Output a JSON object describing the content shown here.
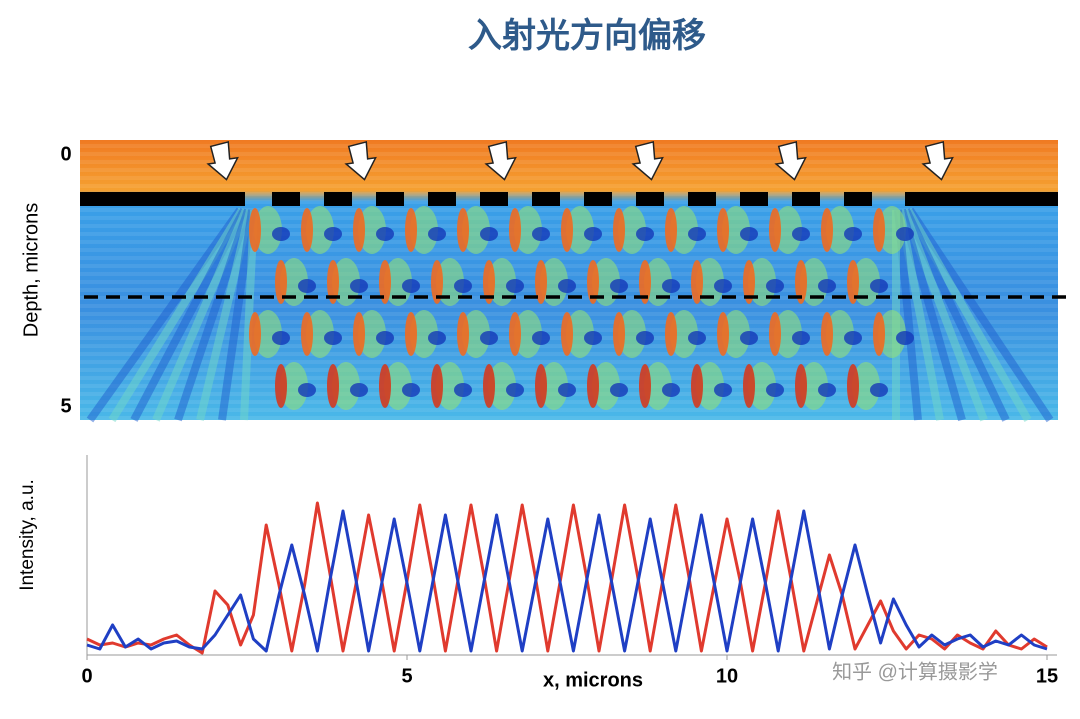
{
  "title": "入射光方向偏移",
  "field": {
    "y_label": "Depth, microns",
    "y_ticks": [
      0,
      5
    ]
  },
  "chart_data": {
    "type": "line",
    "x_label": "x, microns",
    "y_label": "Intensity, a.u.",
    "x": [
      0,
      0.2,
      0.4,
      0.6,
      0.8,
      1,
      1.2,
      1.4,
      1.6,
      1.8,
      2,
      2.2,
      2.4,
      2.6,
      2.8,
      3,
      3.2,
      3.4,
      3.6,
      3.8,
      4,
      4.2,
      4.4,
      4.6,
      4.8,
      5,
      5.2,
      5.4,
      5.6,
      5.8,
      6,
      6.2,
      6.4,
      6.6,
      6.8,
      7,
      7.2,
      7.4,
      7.6,
      7.8,
      8,
      8.2,
      8.4,
      8.6,
      8.8,
      9,
      9.2,
      9.4,
      9.6,
      9.8,
      10,
      10.2,
      10.4,
      10.6,
      10.8,
      11,
      11.2,
      11.4,
      11.6,
      11.8,
      12,
      12.2,
      12.4,
      12.6,
      12.8,
      13,
      13.2,
      13.4,
      13.6,
      13.8,
      14,
      14.2,
      14.4,
      14.6,
      14.8,
      15
    ],
    "series": [
      {
        "color": "#e03a2e",
        "values": [
          0.08,
          0.05,
          0.06,
          0.04,
          0.06,
          0.05,
          0.08,
          0.1,
          0.05,
          0.01,
          0.32,
          0.25,
          0.05,
          0.2,
          0.65,
          0.35,
          0.02,
          0.35,
          0.76,
          0.4,
          0.02,
          0.35,
          0.7,
          0.38,
          0.02,
          0.37,
          0.75,
          0.4,
          0.02,
          0.38,
          0.75,
          0.4,
          0.02,
          0.38,
          0.75,
          0.4,
          0.02,
          0.38,
          0.75,
          0.4,
          0.02,
          0.38,
          0.75,
          0.4,
          0.02,
          0.38,
          0.75,
          0.4,
          0.02,
          0.35,
          0.68,
          0.38,
          0.02,
          0.36,
          0.72,
          0.38,
          0.02,
          0.26,
          0.5,
          0.3,
          0.03,
          0.15,
          0.27,
          0.12,
          0.03,
          0.1,
          0.08,
          0.03,
          0.1,
          0.06,
          0.03,
          0.12,
          0.05,
          0.03,
          0.08,
          0.04
        ]
      },
      {
        "color": "#1f3fc4",
        "values": [
          0.05,
          0.03,
          0.15,
          0.04,
          0.08,
          0.03,
          0.06,
          0.07,
          0.04,
          0.03,
          0.1,
          0.2,
          0.3,
          0.08,
          0.02,
          0.3,
          0.55,
          0.3,
          0.02,
          0.38,
          0.72,
          0.38,
          0.02,
          0.35,
          0.68,
          0.36,
          0.02,
          0.36,
          0.7,
          0.36,
          0.02,
          0.36,
          0.7,
          0.36,
          0.02,
          0.35,
          0.68,
          0.35,
          0.02,
          0.36,
          0.7,
          0.36,
          0.02,
          0.35,
          0.68,
          0.35,
          0.02,
          0.36,
          0.7,
          0.36,
          0.02,
          0.35,
          0.68,
          0.36,
          0.02,
          0.38,
          0.72,
          0.38,
          0.03,
          0.3,
          0.55,
          0.3,
          0.06,
          0.28,
          0.15,
          0.04,
          0.1,
          0.05,
          0.08,
          0.1,
          0.04,
          0.07,
          0.05,
          0.1,
          0.05,
          0.03
        ]
      }
    ],
    "xlim": [
      0,
      15
    ],
    "ylim": [
      0,
      1
    ],
    "xticks": [
      0,
      5,
      10,
      15
    ]
  },
  "watermark": "知乎 @计算摄影学"
}
